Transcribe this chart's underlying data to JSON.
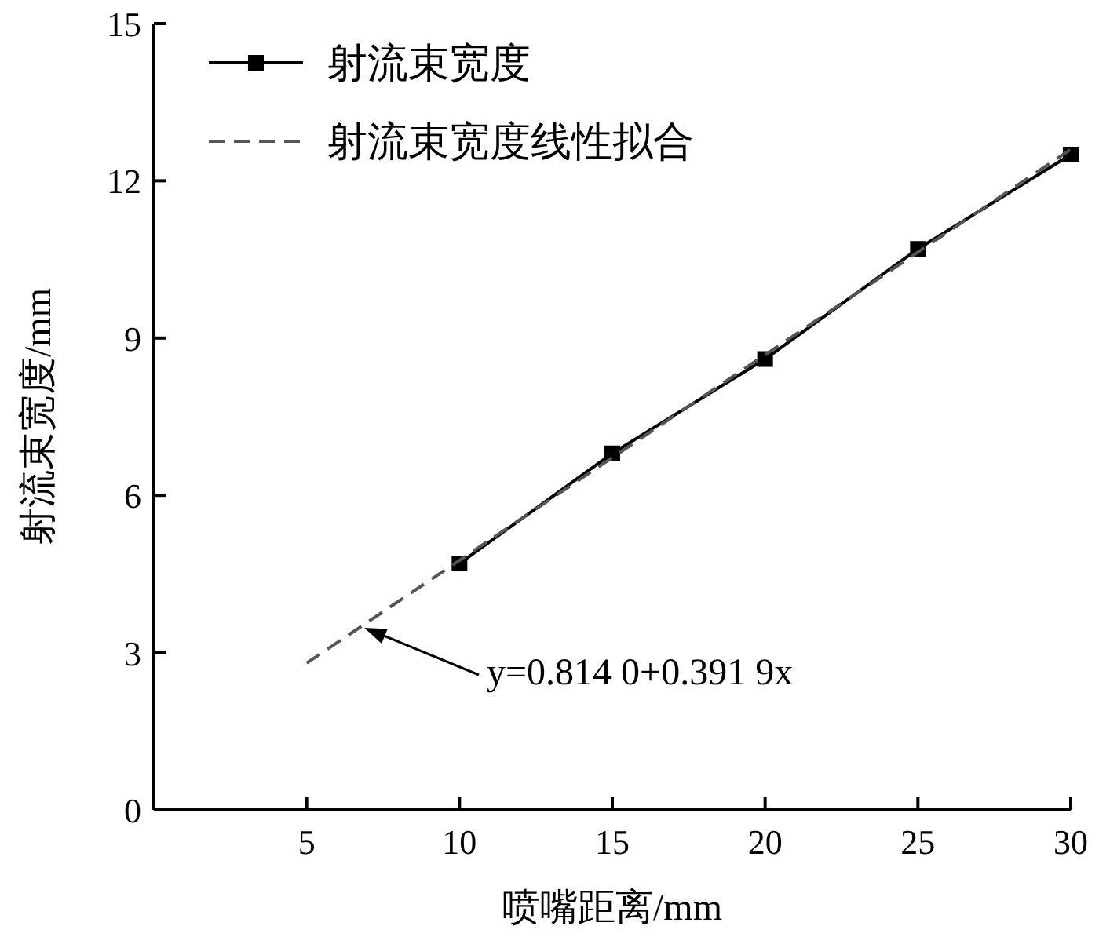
{
  "chart_data": {
    "type": "line",
    "xlabel": "喷嘴距离/mm",
    "ylabel": "射流束宽度/mm",
    "xlim": [
      0,
      30
    ],
    "ylim": [
      0,
      15
    ],
    "xticks": [
      5,
      10,
      15,
      20,
      25,
      30
    ],
    "yticks": [
      0,
      3,
      6,
      9,
      12,
      15
    ],
    "grid": false,
    "legend": "top left",
    "series": [
      {
        "name": "射流束宽度",
        "color": "#000000",
        "x": [
          10,
          15,
          20,
          25,
          30
        ],
        "values": [
          4.7,
          6.8,
          8.6,
          10.7,
          12.5
        ],
        "marker": "square",
        "line_style": "solid"
      },
      {
        "name": "射流束宽度线性拟合",
        "color": "#555555",
        "x": [
          5,
          30
        ],
        "values": [
          2.8,
          12.6
        ],
        "marker": "none",
        "line_style": "dashed"
      }
    ],
    "annotations": [
      "y=0.814 0+0.391 9x"
    ]
  }
}
